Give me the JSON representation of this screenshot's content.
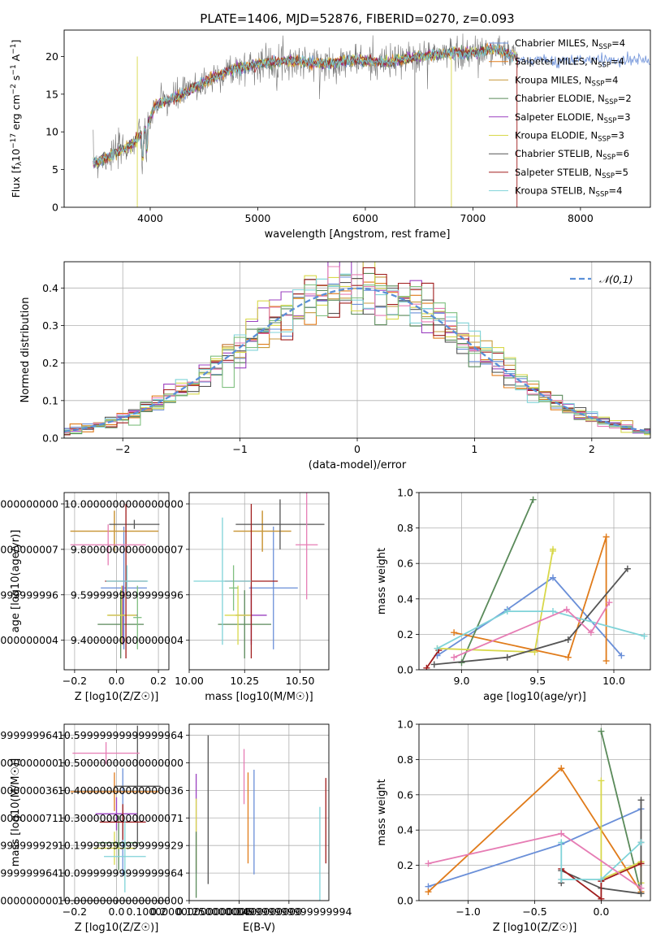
{
  "figure": {
    "title": "PLATE=1406, MJD=52876, FIBERID=0270, z=0.093",
    "colors": [
      "#6a8fd8",
      "#e07b1a",
      "#c79a3c",
      "#5a8a5a",
      "#9b40c0",
      "#d8d84a",
      "#555555",
      "#a01c1c",
      "#7fd3d8",
      "#e67cb4",
      "#7fbf7f"
    ]
  },
  "chart_data": [
    {
      "id": "spectrum",
      "type": "line",
      "xlabel": "wavelength [Angstrom, rest frame]",
      "ylabel": "Flux [f_λ 10^-17 erg cm^-2 s^-1 A^-1]",
      "xlim": [
        3200,
        8650
      ],
      "ylim": [
        0,
        23.5
      ],
      "xticks": [
        4000,
        5000,
        6000,
        7000,
        8000
      ],
      "yticks": [
        0,
        5,
        10,
        15,
        20
      ],
      "grid": false,
      "legend_position": "top-right",
      "series": [
        {
          "name": "Chabrier MILES, N_SSP=4",
          "color": "#6a8fd8"
        },
        {
          "name": "Salpeter MILES, N_SSP=4",
          "color": "#e07b1a"
        },
        {
          "name": "Kroupa MILES, N_SSP=4",
          "color": "#c79a3c"
        },
        {
          "name": "Chabrier ELODIE, N_SSP=2",
          "color": "#5a8a5a"
        },
        {
          "name": "Salpeter ELODIE, N_SSP=3",
          "color": "#9b40c0"
        },
        {
          "name": "Kroupa ELODIE, N_SSP=3",
          "color": "#d8d84a"
        },
        {
          "name": "Chabrier STELIB, N_SSP=6",
          "color": "#555555"
        },
        {
          "name": "Salpeter STELIB, N_SSP=5",
          "color": "#a01c1c"
        },
        {
          "name": "Kroupa STELIB, N_SSP=4",
          "color": "#7fd3d8"
        }
      ],
      "continuum": {
        "x": [
          3500,
          3800,
          3950,
          4050,
          4300,
          4500,
          4700,
          5000,
          5300,
          5600,
          5900,
          6200,
          6500,
          6800,
          7000,
          7200,
          7400
        ],
        "y": [
          6,
          8,
          10,
          13.5,
          15,
          16.5,
          18,
          19,
          19.5,
          19,
          19.5,
          19.2,
          20,
          20.5,
          20.5,
          21,
          20
        ]
      },
      "data_range": [
        3470,
        7420
      ],
      "miles_extension_to": 8650
    },
    {
      "id": "residuals",
      "type": "histogram",
      "xlabel": "(data-model)/error",
      "ylabel": "Normed distribution",
      "xlim": [
        -2.5,
        2.5
      ],
      "ylim": [
        0,
        0.47
      ],
      "xticks": [
        -2,
        -1,
        0,
        1,
        2
      ],
      "yticks": [
        0.0,
        0.1,
        0.2,
        0.3,
        0.4
      ],
      "grid": true,
      "bin_width": 0.1,
      "legend": [
        {
          "name": "𝒩(0,1)",
          "color": "#5a8fd8",
          "style": "dashed"
        }
      ],
      "legend_position": "top-right"
    },
    {
      "id": "age-vs-Z",
      "type": "errorbar",
      "xlabel": "Z [log10(Z/Z☉)]",
      "ylabel": "age [log10(age/yr)]",
      "xlim": [
        -0.25,
        0.25
      ],
      "ylim": [
        9.27,
        10.05
      ],
      "xticks": [
        -0.2,
        0.0,
        0.2
      ],
      "yticks": [
        9.4,
        9.6,
        9.8,
        10.0
      ],
      "grid": true,
      "points": [
        {
          "x": 0.035,
          "y": 9.63,
          "xerr": 0.11,
          "yerr": 0.27,
          "c": "#6a8fd8"
        },
        {
          "x": -0.01,
          "y": 9.88,
          "xerr": 0.21,
          "yerr": 0.09,
          "c": "#e07b1a"
        },
        {
          "x": -0.01,
          "y": 9.88,
          "xerr": 0.21,
          "yerr": 0.09,
          "c": "#c79a3c"
        },
        {
          "x": 0.02,
          "y": 9.47,
          "xerr": 0.11,
          "yerr": 0.15,
          "c": "#5a8a5a"
        },
        {
          "x": 0.03,
          "y": 9.51,
          "xerr": 0.07,
          "yerr": 0.13,
          "c": "#9b40c0"
        },
        {
          "x": 0.025,
          "y": 9.51,
          "xerr": 0.07,
          "yerr": 0.13,
          "c": "#d8d84a"
        },
        {
          "x": 0.085,
          "y": 9.91,
          "xerr": 0.12,
          "yerr": 0.02,
          "c": "#555555"
        },
        {
          "x": 0.045,
          "y": 9.66,
          "xerr": 0.1,
          "yerr": 0.34,
          "c": "#a01c1c"
        },
        {
          "x": 0.05,
          "y": 9.66,
          "xerr": 0.1,
          "yerr": 0.07,
          "c": "#7fd3d8"
        },
        {
          "x": -0.04,
          "y": 9.82,
          "xerr": 0.18,
          "yerr": 0.09,
          "c": "#e67cb4"
        },
        {
          "x": 0.1,
          "y": 9.5,
          "xerr": 0.02,
          "yerr": 0.14,
          "c": "#7fbf7f"
        }
      ]
    },
    {
      "id": "age-vs-mass",
      "type": "errorbar",
      "xlabel": "mass [log10(M/M☉)]",
      "ylabel": "",
      "xlim": [
        10.0,
        10.63
      ],
      "ylim": [
        9.27,
        10.05
      ],
      "xticks": [
        10.0,
        10.25,
        10.5
      ],
      "yticks": [
        9.4,
        9.6,
        9.8,
        10.0
      ],
      "grid": true,
      "points": [
        {
          "x": 10.38,
          "y": 9.63,
          "xerr": 0.11,
          "yerr": 0.27,
          "c": "#6a8fd8"
        },
        {
          "x": 10.33,
          "y": 9.88,
          "xerr": 0.13,
          "yerr": 0.09,
          "c": "#e07b1a"
        },
        {
          "x": 10.33,
          "y": 9.88,
          "xerr": 0.13,
          "yerr": 0.09,
          "c": "#c79a3c"
        },
        {
          "x": 10.25,
          "y": 9.47,
          "xerr": 0.12,
          "yerr": 0.15,
          "c": "#5a8a5a"
        },
        {
          "x": 10.28,
          "y": 9.51,
          "xerr": 0.07,
          "yerr": 0.13,
          "c": "#9b40c0"
        },
        {
          "x": 10.22,
          "y": 9.51,
          "xerr": 0.06,
          "yerr": 0.13,
          "c": "#d8d84a"
        },
        {
          "x": 10.41,
          "y": 9.91,
          "xerr": 0.2,
          "yerr": 0.11,
          "c": "#555555"
        },
        {
          "x": 10.28,
          "y": 9.66,
          "xerr": 0.12,
          "yerr": 0.34,
          "c": "#a01c1c"
        },
        {
          "x": 10.15,
          "y": 9.66,
          "xerr": 0.13,
          "yerr": 0.28,
          "c": "#7fd3d8"
        },
        {
          "x": 10.53,
          "y": 9.82,
          "xerr": 0.05,
          "yerr": 0.24,
          "c": "#e67cb4"
        },
        {
          "x": 10.2,
          "y": 9.63,
          "xerr": 0.02,
          "yerr": 0.1,
          "c": "#7fbf7f"
        }
      ]
    },
    {
      "id": "weight-vs-age",
      "type": "line",
      "xlabel": "age [log10(age/yr)]",
      "ylabel": "mass weight",
      "xlim": [
        8.72,
        10.24
      ],
      "ylim": [
        0,
        1.0
      ],
      "xticks": [
        9.0,
        9.5,
        10.0
      ],
      "yticks": [
        0.0,
        0.2,
        0.4,
        0.6,
        0.8,
        1.0
      ],
      "grid": true,
      "series": [
        {
          "c": "#6a8fd8",
          "x": [
            8.84,
            9.3,
            9.6,
            10.05
          ],
          "y": [
            0.08,
            0.34,
            0.52,
            0.08
          ]
        },
        {
          "c": "#e07b1a",
          "x": [
            8.95,
            9.7,
            9.95,
            9.95
          ],
          "y": [
            0.21,
            0.07,
            0.75,
            0.05
          ]
        },
        {
          "c": "#5a8a5a",
          "x": [
            9.0,
            9.47
          ],
          "y": [
            0.04,
            0.96
          ]
        },
        {
          "c": "#d8d84a",
          "x": [
            8.84,
            9.48,
            9.6,
            9.6
          ],
          "y": [
            0.12,
            0.1,
            0.68,
            0.67
          ]
        },
        {
          "c": "#555555",
          "x": [
            8.82,
            9.3,
            9.7,
            10.09
          ],
          "y": [
            0.03,
            0.07,
            0.17,
            0.57
          ]
        },
        {
          "c": "#a01c1c",
          "x": [
            8.77,
            8.85
          ],
          "y": [
            0.01,
            0.11
          ]
        },
        {
          "c": "#7fd3d8",
          "x": [
            8.84,
            9.3,
            9.6,
            10.2
          ],
          "y": [
            0.12,
            0.33,
            0.33,
            0.19
          ]
        },
        {
          "c": "#e67cb4",
          "x": [
            8.95,
            9.69,
            9.85,
            9.97
          ],
          "y": [
            0.07,
            0.34,
            0.21,
            0.38
          ]
        }
      ]
    },
    {
      "id": "mass-vs-Z",
      "type": "errorbar",
      "xlabel": "Z [log10(Z/Z☉)]",
      "ylabel": "mass [log10(M/M☉)]",
      "xlim": [
        -0.25,
        0.25
      ],
      "ylim": [
        10.0,
        10.64
      ],
      "xticks": [
        -0.2,
        0.0,
        0.2
      ],
      "yticks": [
        10.0,
        10.1,
        10.2,
        10.3,
        10.4,
        10.5,
        10.6
      ],
      "grid": true,
      "points": [
        {
          "x": 0.03,
          "y": 10.285,
          "xerr": 0.11,
          "yerr": 0.195,
          "c": "#6a8fd8"
        },
        {
          "x": -0.01,
          "y": 10.395,
          "xerr": 0.21,
          "yerr": 0.07,
          "c": "#e07b1a"
        },
        {
          "x": 0.01,
          "y": 10.21,
          "xerr": 0.1,
          "yerr": 0.1,
          "c": "#5a8a5a"
        },
        {
          "x": 0.0,
          "y": 10.315,
          "xerr": 0.1,
          "yerr": 0.06,
          "c": "#9b40c0"
        },
        {
          "x": -0.01,
          "y": 10.19,
          "xerr": 0.1,
          "yerr": 0.06,
          "c": "#d8d84a"
        },
        {
          "x": 0.1,
          "y": 10.415,
          "xerr": 0.11,
          "yerr": 0.22,
          "c": "#555555"
        },
        {
          "x": 0.03,
          "y": 10.285,
          "xerr": 0.11,
          "yerr": 0.065,
          "c": "#a01c1c"
        },
        {
          "x": 0.04,
          "y": 10.16,
          "xerr": 0.1,
          "yerr": 0.13,
          "c": "#7fd3d8"
        },
        {
          "x": -0.05,
          "y": 10.535,
          "xerr": 0.16,
          "yerr": 0.04,
          "c": "#e67cb4"
        }
      ]
    },
    {
      "id": "mass-vs-EBV",
      "type": "errorbar",
      "xlabel": "E(B-V)",
      "ylabel": "",
      "xlim": [
        0.1,
        0.17
      ],
      "ylim": [
        10.0,
        10.64
      ],
      "xticks": [
        0.1,
        0.125,
        0.15
      ],
      "yticks": [
        10.0,
        10.1,
        10.2,
        10.3,
        10.4,
        10.5,
        10.6
      ],
      "grid": true,
      "points": [
        {
          "x": 0.1035,
          "y": 10.28,
          "yerr": 0.18,
          "c": "#9b40c0"
        },
        {
          "x": 0.1035,
          "y": 10.24,
          "yerr": 0.13,
          "c": "#d8d84a"
        },
        {
          "x": 0.1035,
          "y": 10.13,
          "yerr": 0.12,
          "c": "#5a8a5a"
        },
        {
          "x": 0.1095,
          "y": 10.33,
          "yerr": 0.27,
          "c": "#555555"
        },
        {
          "x": 0.1275,
          "y": 10.45,
          "yerr": 0.1,
          "c": "#e67cb4"
        },
        {
          "x": 0.1295,
          "y": 10.3,
          "yerr": 0.165,
          "c": "#e07b1a"
        },
        {
          "x": 0.1325,
          "y": 10.285,
          "yerr": 0.19,
          "c": "#6a8fd8"
        },
        {
          "x": 0.1655,
          "y": 10.16,
          "yerr": 0.18,
          "c": "#7fd3d8"
        },
        {
          "x": 0.1685,
          "y": 10.29,
          "yerr": 0.155,
          "c": "#a01c1c"
        }
      ]
    },
    {
      "id": "weight-vs-Z",
      "type": "line",
      "xlabel": "Z [log10(Z/Z☉)]",
      "ylabel": "mass weight",
      "xlim": [
        -1.37,
        0.37
      ],
      "ylim": [
        0,
        1.0
      ],
      "xticks": [
        -1.0,
        -0.5,
        0.0
      ],
      "yticks": [
        0.0,
        0.2,
        0.4,
        0.6,
        0.8,
        1.0
      ],
      "grid": true,
      "series": [
        {
          "c": "#6a8fd8",
          "x": [
            -1.3,
            -0.3,
            0.3
          ],
          "y": [
            0.08,
            0.32,
            0.52
          ]
        },
        {
          "c": "#e07b1a",
          "x": [
            -1.3,
            -0.3,
            0.3,
            0.3
          ],
          "y": [
            0.05,
            0.75,
            0.05,
            0.21
          ]
        },
        {
          "c": "#5a8a5a",
          "x": [
            0.0,
            0.3
          ],
          "y": [
            0.96,
            0.04
          ]
        },
        {
          "c": "#d8d84a",
          "x": [
            0.0,
            0.0,
            0.3,
            0.3
          ],
          "y": [
            0.68,
            0.12,
            0.22,
            0.1
          ]
        },
        {
          "c": "#555555",
          "x": [
            -0.3,
            -0.3,
            0.0,
            0.3,
            0.3,
            0.3
          ],
          "y": [
            0.1,
            0.17,
            0.07,
            0.04,
            0.57,
            0.33
          ]
        },
        {
          "c": "#a01c1c",
          "x": [
            -0.3,
            0.0,
            0.0,
            0.3
          ],
          "y": [
            0.18,
            0.01,
            0.11,
            0.21
          ]
        },
        {
          "c": "#7fd3d8",
          "x": [
            -0.3,
            -0.3,
            0.0,
            0.3
          ],
          "y": [
            0.33,
            0.12,
            0.12,
            0.33
          ]
        },
        {
          "c": "#e67cb4",
          "x": [
            -1.3,
            -0.3,
            0.3
          ],
          "y": [
            0.21,
            0.38,
            0.07
          ]
        }
      ]
    }
  ]
}
